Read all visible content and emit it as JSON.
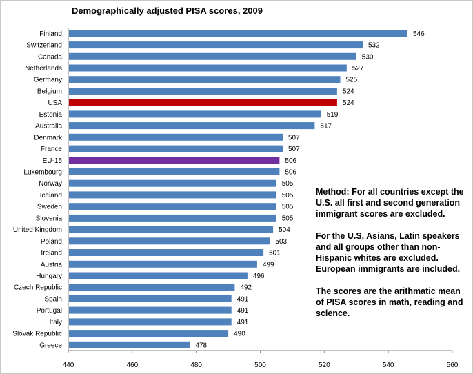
{
  "chart_data": {
    "type": "bar",
    "orientation": "horizontal",
    "title": "Demographically adjusted PISA scores, 2009",
    "categories": [
      "Finland",
      "Switzerland",
      "Canada",
      "Netherlands",
      "Germany",
      "Belgium",
      "USA",
      "Estonia",
      "Australia",
      "Denmark",
      "France",
      "EU-15",
      "Luxembourg",
      "Norway",
      "Iceland",
      "Sweden",
      "Slovenia",
      "United Kingdom",
      "Poland",
      "Ireland",
      "Austria",
      "Hungary",
      "Czech Republic",
      "Spain",
      "Portugal",
      "Italy",
      "Slovak Republic",
      "Greece"
    ],
    "values": [
      546,
      532,
      530,
      527,
      525,
      524,
      524,
      519,
      517,
      507,
      507,
      506,
      506,
      505,
      505,
      505,
      505,
      504,
      503,
      501,
      499,
      496,
      492,
      491,
      491,
      491,
      490,
      478
    ],
    "xlim": [
      440,
      560
    ],
    "xticks": [
      440,
      460,
      480,
      500,
      520,
      540,
      560
    ],
    "default_color": "#4f81bd",
    "highlight_colors": {
      "USA": "#c00000",
      "EU-15": "#7030a0"
    },
    "grid": false,
    "legend": "none"
  },
  "notes": [
    "Method: For all countries except the U.S. all first and second generation immigrant scores are excluded.",
    "For the U.S, Asians, Latin speakers and all groups other than non-Hispanic whites are excluded. European immigrants are included.",
    "The scores are the arithmatic mean of PISA scores in math, reading and science."
  ]
}
